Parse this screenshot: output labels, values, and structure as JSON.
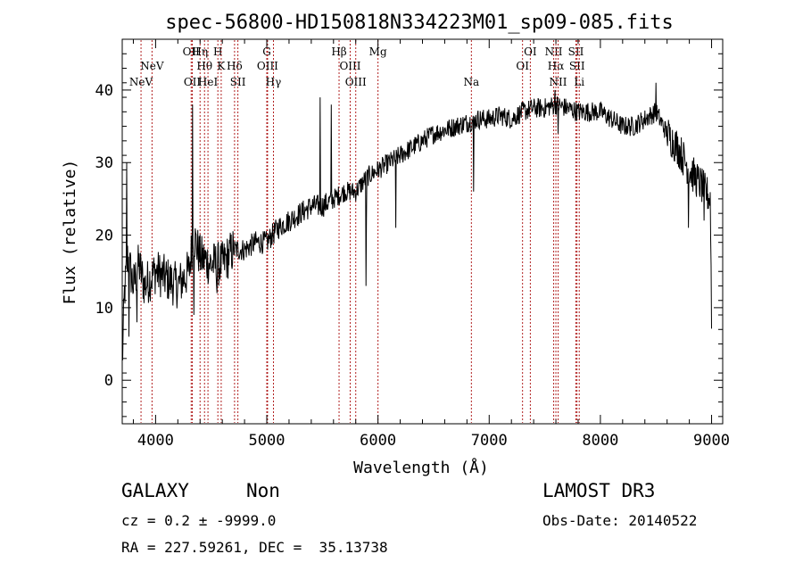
{
  "chart_data": {
    "type": "line",
    "title": "spec-56800-HD150818N334223M01_sp09-085.fits",
    "xlabel": "Wavelength (Å)",
    "ylabel": "Flux (relative)",
    "xlim": [
      3700,
      9100
    ],
    "ylim": [
      -6,
      47
    ],
    "xticks": [
      4000,
      5000,
      6000,
      7000,
      8000,
      9000
    ],
    "yticks": [
      0,
      10,
      20,
      30,
      40
    ],
    "grid": false,
    "series": [
      {
        "anchors": [
          [
            3700,
            2
          ],
          [
            3720,
            12
          ],
          [
            3750,
            17
          ],
          [
            3800,
            13
          ],
          [
            3850,
            16
          ],
          [
            3900,
            13
          ],
          [
            4000,
            15
          ],
          [
            4100,
            14
          ],
          [
            4200,
            13
          ],
          [
            4300,
            15
          ],
          [
            4340,
            20
          ],
          [
            4400,
            17
          ],
          [
            4500,
            16
          ],
          [
            4600,
            16
          ],
          [
            4700,
            18
          ],
          [
            4800,
            18
          ],
          [
            4900,
            19
          ],
          [
            5000,
            19
          ],
          [
            5100,
            21
          ],
          [
            5200,
            22
          ],
          [
            5300,
            23
          ],
          [
            5400,
            24
          ],
          [
            5500,
            24
          ],
          [
            5600,
            25
          ],
          [
            5700,
            26
          ],
          [
            5800,
            26
          ],
          [
            5900,
            28
          ],
          [
            6000,
            29
          ],
          [
            6100,
            30
          ],
          [
            6200,
            31
          ],
          [
            6300,
            32
          ],
          [
            6400,
            33
          ],
          [
            6500,
            34
          ],
          [
            6600,
            34.5
          ],
          [
            6700,
            35
          ],
          [
            6800,
            35.5
          ],
          [
            6900,
            36
          ],
          [
            7000,
            36
          ],
          [
            7100,
            36.5
          ],
          [
            7200,
            36
          ],
          [
            7300,
            37
          ],
          [
            7400,
            37.5
          ],
          [
            7500,
            37.5
          ],
          [
            7600,
            38
          ],
          [
            7700,
            37.5
          ],
          [
            7800,
            37
          ],
          [
            7900,
            37
          ],
          [
            8000,
            37
          ],
          [
            8100,
            36
          ],
          [
            8200,
            35
          ],
          [
            8300,
            35
          ],
          [
            8400,
            36
          ],
          [
            8500,
            37
          ],
          [
            8600,
            34
          ],
          [
            8700,
            32
          ],
          [
            8800,
            29
          ],
          [
            8900,
            27
          ],
          [
            8990,
            25
          ],
          [
            9000,
            8
          ]
        ],
        "features": [
          [
            3740,
            30
          ],
          [
            3760,
            6
          ],
          [
            3830,
            8
          ],
          [
            4330,
            38
          ],
          [
            4345,
            9
          ],
          [
            4550,
            12
          ],
          [
            5480,
            39
          ],
          [
            5580,
            38
          ],
          [
            5890,
            13
          ],
          [
            5895,
            22
          ],
          [
            6160,
            21
          ],
          [
            6860,
            26
          ],
          [
            7590,
            40
          ],
          [
            7620,
            34
          ],
          [
            8500,
            41
          ],
          [
            8790,
            21
          ],
          [
            8930,
            22
          ]
        ]
      }
    ],
    "line_markers": [
      {
        "lines": [
          {
            "label": "NeV",
            "x": 3869
          }
        ],
        "row": 3
      },
      {
        "lines": [
          {
            "label": "NeV",
            "x": 3968
          }
        ],
        "row": 2
      },
      {
        "lines": [
          {
            "label": "OII",
            "x": 4320
          }
        ],
        "row": 1
      },
      {
        "lines": [
          {
            "label": "OII",
            "x": 4330
          }
        ],
        "row": 3
      },
      {
        "lines": [
          {
            "label": "Hη",
            "x": 4400
          }
        ],
        "row": 1
      },
      {
        "lines": [
          {
            "label": "Hθ",
            "x": 4440
          }
        ],
        "row": 2
      },
      {
        "lines": [
          {
            "label": "HeI",
            "x": 4471
          }
        ],
        "row": 3
      },
      {
        "lines": [
          {
            "label": "H",
            "x": 4560
          }
        ],
        "row": 1
      },
      {
        "lines": [
          {
            "label": "K",
            "x": 4590
          }
        ],
        "row": 2
      },
      {
        "lines": [
          {
            "label": "Hδ",
            "x": 4710
          }
        ],
        "row": 2
      },
      {
        "lines": [
          {
            "label": "SII",
            "x": 4740
          }
        ],
        "row": 3
      },
      {
        "lines": [
          {
            "label": "G",
            "x": 5000
          }
        ],
        "row": 1
      },
      {
        "lines": [
          {
            "label": "OIII",
            "x": 5007
          }
        ],
        "row": 2
      },
      {
        "lines": [
          {
            "label": "Hγ",
            "x": 5060
          }
        ],
        "row": 3
      },
      {
        "lines": [
          {
            "label": "Hβ",
            "x": 5650
          }
        ],
        "row": 1
      },
      {
        "lines": [
          {
            "label": "OIII",
            "x": 5750
          }
        ],
        "row": 2
      },
      {
        "lines": [
          {
            "label": "OIII",
            "x": 5800
          }
        ],
        "row": 3
      },
      {
        "lines": [
          {
            "label": "Mg",
            "x": 6000
          }
        ],
        "row": 1
      },
      {
        "lines": [
          {
            "label": "Na",
            "x": 6840
          }
        ],
        "row": 3
      },
      {
        "lines": [
          {
            "label": "OI",
            "x": 7300
          }
        ],
        "row": 2
      },
      {
        "lines": [
          {
            "label": "OI",
            "x": 7370
          }
        ],
        "row": 1
      },
      {
        "lines": [
          {
            "label": "NII",
            "x": 7580
          }
        ],
        "row": 1
      },
      {
        "lines": [
          {
            "label": "Hα",
            "x": 7600
          }
        ],
        "row": 2
      },
      {
        "lines": [
          {
            "label": "NII",
            "x": 7620
          }
        ],
        "row": 3
      },
      {
        "lines": [
          {
            "label": "SII",
            "x": 7780
          }
        ],
        "row": 1
      },
      {
        "lines": [
          {
            "label": "SII",
            "x": 7790
          }
        ],
        "row": 2
      },
      {
        "lines": [
          {
            "label": "Li",
            "x": 7810
          }
        ],
        "row": 3
      }
    ]
  },
  "footer": {
    "class_label": "GALAXY",
    "subclass_label": "Non",
    "survey_label": "LAMOST DR3",
    "cz_text": "cz = 0.2 ± -9999.0",
    "obs_date_text": "Obs-Date: 20140522",
    "coords_text": "RA = 227.59261, DEC =  35.13738"
  },
  "colors": {
    "spectrum": "#000000",
    "marker_lines": "#b22222",
    "axes": "#000000"
  }
}
